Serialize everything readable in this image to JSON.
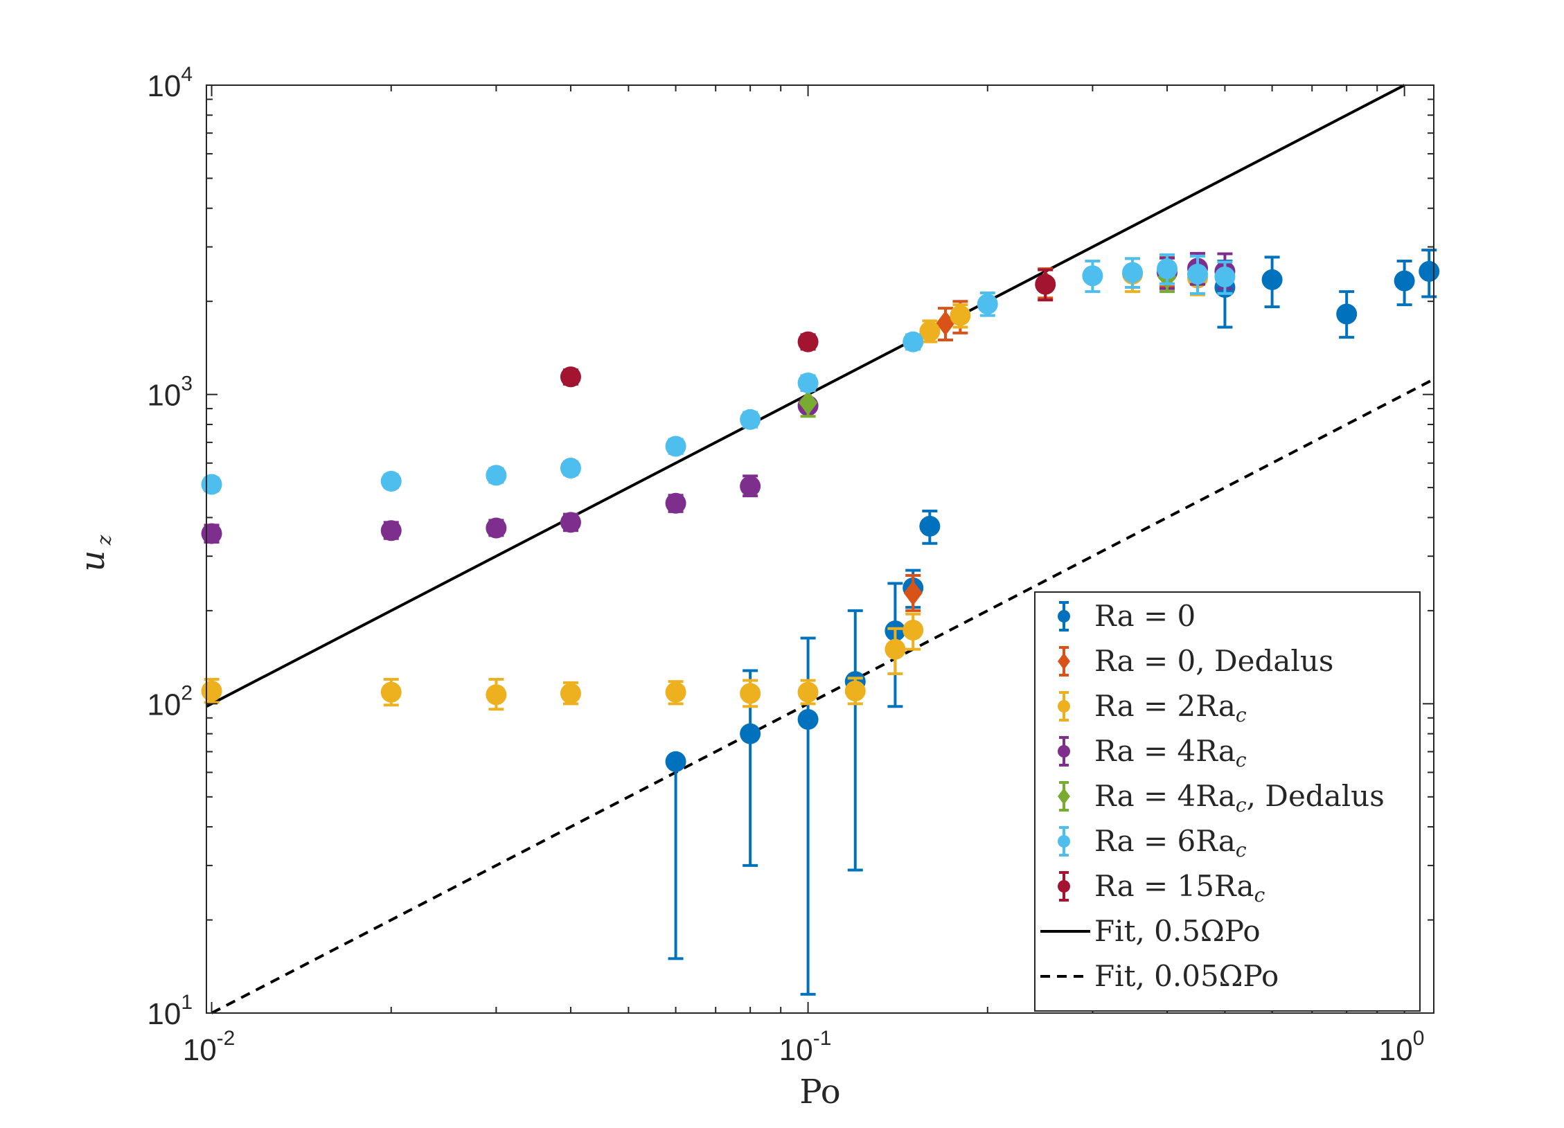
{
  "chart_data": {
    "type": "scatter",
    "xscale": "log",
    "yscale": "log",
    "xlim": [
      0.0098,
      1.12
    ],
    "ylim": [
      10,
      10000
    ],
    "xlabel": "Po",
    "ylabel": "u",
    "ylabel_sub": "z",
    "xticks": [
      {
        "base": "10",
        "exp": "-2",
        "value": 0.01
      },
      {
        "base": "10",
        "exp": "-1",
        "value": 0.1
      },
      {
        "base": "10",
        "exp": "0",
        "value": 1
      }
    ],
    "yticks": [
      {
        "base": "10",
        "exp": "1",
        "value": 10
      },
      {
        "base": "10",
        "exp": "2",
        "value": 100
      },
      {
        "base": "10",
        "exp": "3",
        "value": 1000
      },
      {
        "base": "10",
        "exp": "4",
        "value": 10000
      }
    ],
    "legend_position": "bottom-right",
    "series": [
      {
        "name": "Ra = 0",
        "label_main": "Ra = 0",
        "label_sub": "",
        "label_tail": "",
        "color": "#0072BD",
        "marker": "circle",
        "points": [
          {
            "x": 0.06,
            "y": 65,
            "lo": 15,
            "hi": 65
          },
          {
            "x": 0.08,
            "y": 80,
            "lo": 30,
            "hi": 128
          },
          {
            "x": 0.1,
            "y": 89,
            "lo": 11.5,
            "hi": 163
          },
          {
            "x": 0.12,
            "y": 118,
            "lo": 29,
            "hi": 200
          },
          {
            "x": 0.14,
            "y": 172,
            "lo": 98,
            "hi": 245
          },
          {
            "x": 0.15,
            "y": 237,
            "lo": 205,
            "hi": 270
          },
          {
            "x": 0.16,
            "y": 375,
            "lo": 330,
            "hi": 420
          },
          {
            "x": 0.5,
            "y": 2220,
            "lo": 1650,
            "hi": 2700
          },
          {
            "x": 0.6,
            "y": 2350,
            "lo": 1920,
            "hi": 2780
          },
          {
            "x": 0.8,
            "y": 1820,
            "lo": 1530,
            "hi": 2150
          },
          {
            "x": 1.0,
            "y": 2330,
            "lo": 1950,
            "hi": 2700
          },
          {
            "x": 1.1,
            "y": 2500,
            "lo": 2070,
            "hi": 2930
          }
        ]
      },
      {
        "name": "Ra = 0, Dedalus",
        "label_main": "Ra = 0",
        "label_sub": "",
        "label_tail": ", Dedalus",
        "color": "#D95319",
        "marker": "diamond",
        "points": [
          {
            "x": 0.15,
            "y": 228,
            "lo": 200,
            "hi": 260
          },
          {
            "x": 0.17,
            "y": 1700,
            "lo": 1500,
            "hi": 1900
          },
          {
            "x": 0.18,
            "y": 1790,
            "lo": 1580,
            "hi": 2000
          },
          {
            "x": 0.25,
            "y": 2300,
            "lo": 2050,
            "hi": 2550
          },
          {
            "x": 0.4,
            "y": 2500,
            "lo": 2230,
            "hi": 2770
          }
        ]
      },
      {
        "name": "Ra = 2Ra_c",
        "label_main": "Ra = 2Ra",
        "label_sub": "c",
        "label_tail": "",
        "color": "#EDB120",
        "marker": "circle",
        "points": [
          {
            "x": 0.01,
            "y": 110,
            "lo": 101,
            "hi": 120
          },
          {
            "x": 0.02,
            "y": 109,
            "lo": 99,
            "hi": 120
          },
          {
            "x": 0.03,
            "y": 107,
            "lo": 96,
            "hi": 120
          },
          {
            "x": 0.04,
            "y": 108,
            "lo": 100,
            "hi": 117
          },
          {
            "x": 0.06,
            "y": 109,
            "lo": 100,
            "hi": 118
          },
          {
            "x": 0.08,
            "y": 108,
            "lo": 98,
            "hi": 119
          },
          {
            "x": 0.1,
            "y": 109,
            "lo": 100,
            "hi": 119
          },
          {
            "x": 0.12,
            "y": 110,
            "lo": 100,
            "hi": 121
          },
          {
            "x": 0.14,
            "y": 150,
            "lo": 125,
            "hi": 175
          },
          {
            "x": 0.15,
            "y": 173,
            "lo": 150,
            "hi": 195
          },
          {
            "x": 0.16,
            "y": 1600,
            "lo": 1480,
            "hi": 1730
          },
          {
            "x": 0.18,
            "y": 1800,
            "lo": 1650,
            "hi": 1950
          },
          {
            "x": 0.35,
            "y": 2450,
            "lo": 2150,
            "hi": 2750
          },
          {
            "x": 0.45,
            "y": 2380,
            "lo": 2100,
            "hi": 2650
          }
        ]
      },
      {
        "name": "Ra = 4Ra_c",
        "label_main": "Ra = 4Ra",
        "label_sub": "c",
        "label_tail": "",
        "color": "#7E2F8E",
        "marker": "circle",
        "points": [
          {
            "x": 0.01,
            "y": 355,
            "lo": 333,
            "hi": 378
          },
          {
            "x": 0.02,
            "y": 363,
            "lo": 342,
            "hi": 386
          },
          {
            "x": 0.03,
            "y": 370,
            "lo": 350,
            "hi": 392
          },
          {
            "x": 0.04,
            "y": 386,
            "lo": 363,
            "hi": 410
          },
          {
            "x": 0.06,
            "y": 445,
            "lo": 418,
            "hi": 472
          },
          {
            "x": 0.08,
            "y": 505,
            "lo": 470,
            "hi": 545
          },
          {
            "x": 0.1,
            "y": 920,
            "lo": 880,
            "hi": 960
          },
          {
            "x": 0.4,
            "y": 2480,
            "lo": 2200,
            "hi": 2760
          },
          {
            "x": 0.45,
            "y": 2560,
            "lo": 2270,
            "hi": 2860
          },
          {
            "x": 0.5,
            "y": 2500,
            "lo": 2200,
            "hi": 2850
          }
        ]
      },
      {
        "name": "Ra = 4Ra_c, Dedalus",
        "label_main": "Ra = 4Ra",
        "label_sub": "c",
        "label_tail": ", Dedalus",
        "color": "#77AC30",
        "marker": "diamond",
        "points": [
          {
            "x": 0.1,
            "y": 940,
            "lo": 850,
            "hi": 1030
          },
          {
            "x": 0.4,
            "y": 2400,
            "lo": 2150,
            "hi": 2650
          }
        ]
      },
      {
        "name": "Ra = 6Ra_c",
        "label_main": "Ra = 6Ra",
        "label_sub": "c",
        "label_tail": "",
        "color": "#4DBEEE",
        "marker": "circle",
        "points": [
          {
            "x": 0.01,
            "y": 512,
            "lo": 488,
            "hi": 537
          },
          {
            "x": 0.02,
            "y": 524,
            "lo": 500,
            "hi": 550
          },
          {
            "x": 0.03,
            "y": 548,
            "lo": 520,
            "hi": 576
          },
          {
            "x": 0.04,
            "y": 578,
            "lo": 550,
            "hi": 606
          },
          {
            "x": 0.06,
            "y": 680,
            "lo": 645,
            "hi": 716
          },
          {
            "x": 0.08,
            "y": 830,
            "lo": 785,
            "hi": 875
          },
          {
            "x": 0.1,
            "y": 1090,
            "lo": 1030,
            "hi": 1150
          },
          {
            "x": 0.15,
            "y": 1480,
            "lo": 1400,
            "hi": 1560
          },
          {
            "x": 0.2,
            "y": 1960,
            "lo": 1800,
            "hi": 2130
          },
          {
            "x": 0.3,
            "y": 2420,
            "lo": 2150,
            "hi": 2700
          },
          {
            "x": 0.35,
            "y": 2480,
            "lo": 2220,
            "hi": 2750
          },
          {
            "x": 0.4,
            "y": 2550,
            "lo": 2280,
            "hi": 2830
          },
          {
            "x": 0.45,
            "y": 2450,
            "lo": 2120,
            "hi": 2800
          },
          {
            "x": 0.5,
            "y": 2400,
            "lo": 2120,
            "hi": 2680
          }
        ]
      },
      {
        "name": "Ra = 15Ra_c",
        "label_main": "Ra = 15Ra",
        "label_sub": "c",
        "label_tail": "",
        "color": "#A2142F",
        "marker": "circle",
        "points": [
          {
            "x": 0.04,
            "y": 1140,
            "lo": 1080,
            "hi": 1200
          },
          {
            "x": 0.1,
            "y": 1480,
            "lo": 1400,
            "hi": 1560
          },
          {
            "x": 0.25,
            "y": 2270,
            "lo": 2020,
            "hi": 2530
          }
        ]
      }
    ],
    "fits": [
      {
        "name": "Fit, 0.5ΩPo",
        "label": "Fit, 0.5ΩPo",
        "coef": 10000,
        "style": "solid",
        "color": "#000000"
      },
      {
        "name": "Fit, 0.05ΩPo",
        "label": "Fit, 0.05ΩPo",
        "coef": 1000,
        "style": "dashed",
        "color": "#000000"
      }
    ]
  }
}
